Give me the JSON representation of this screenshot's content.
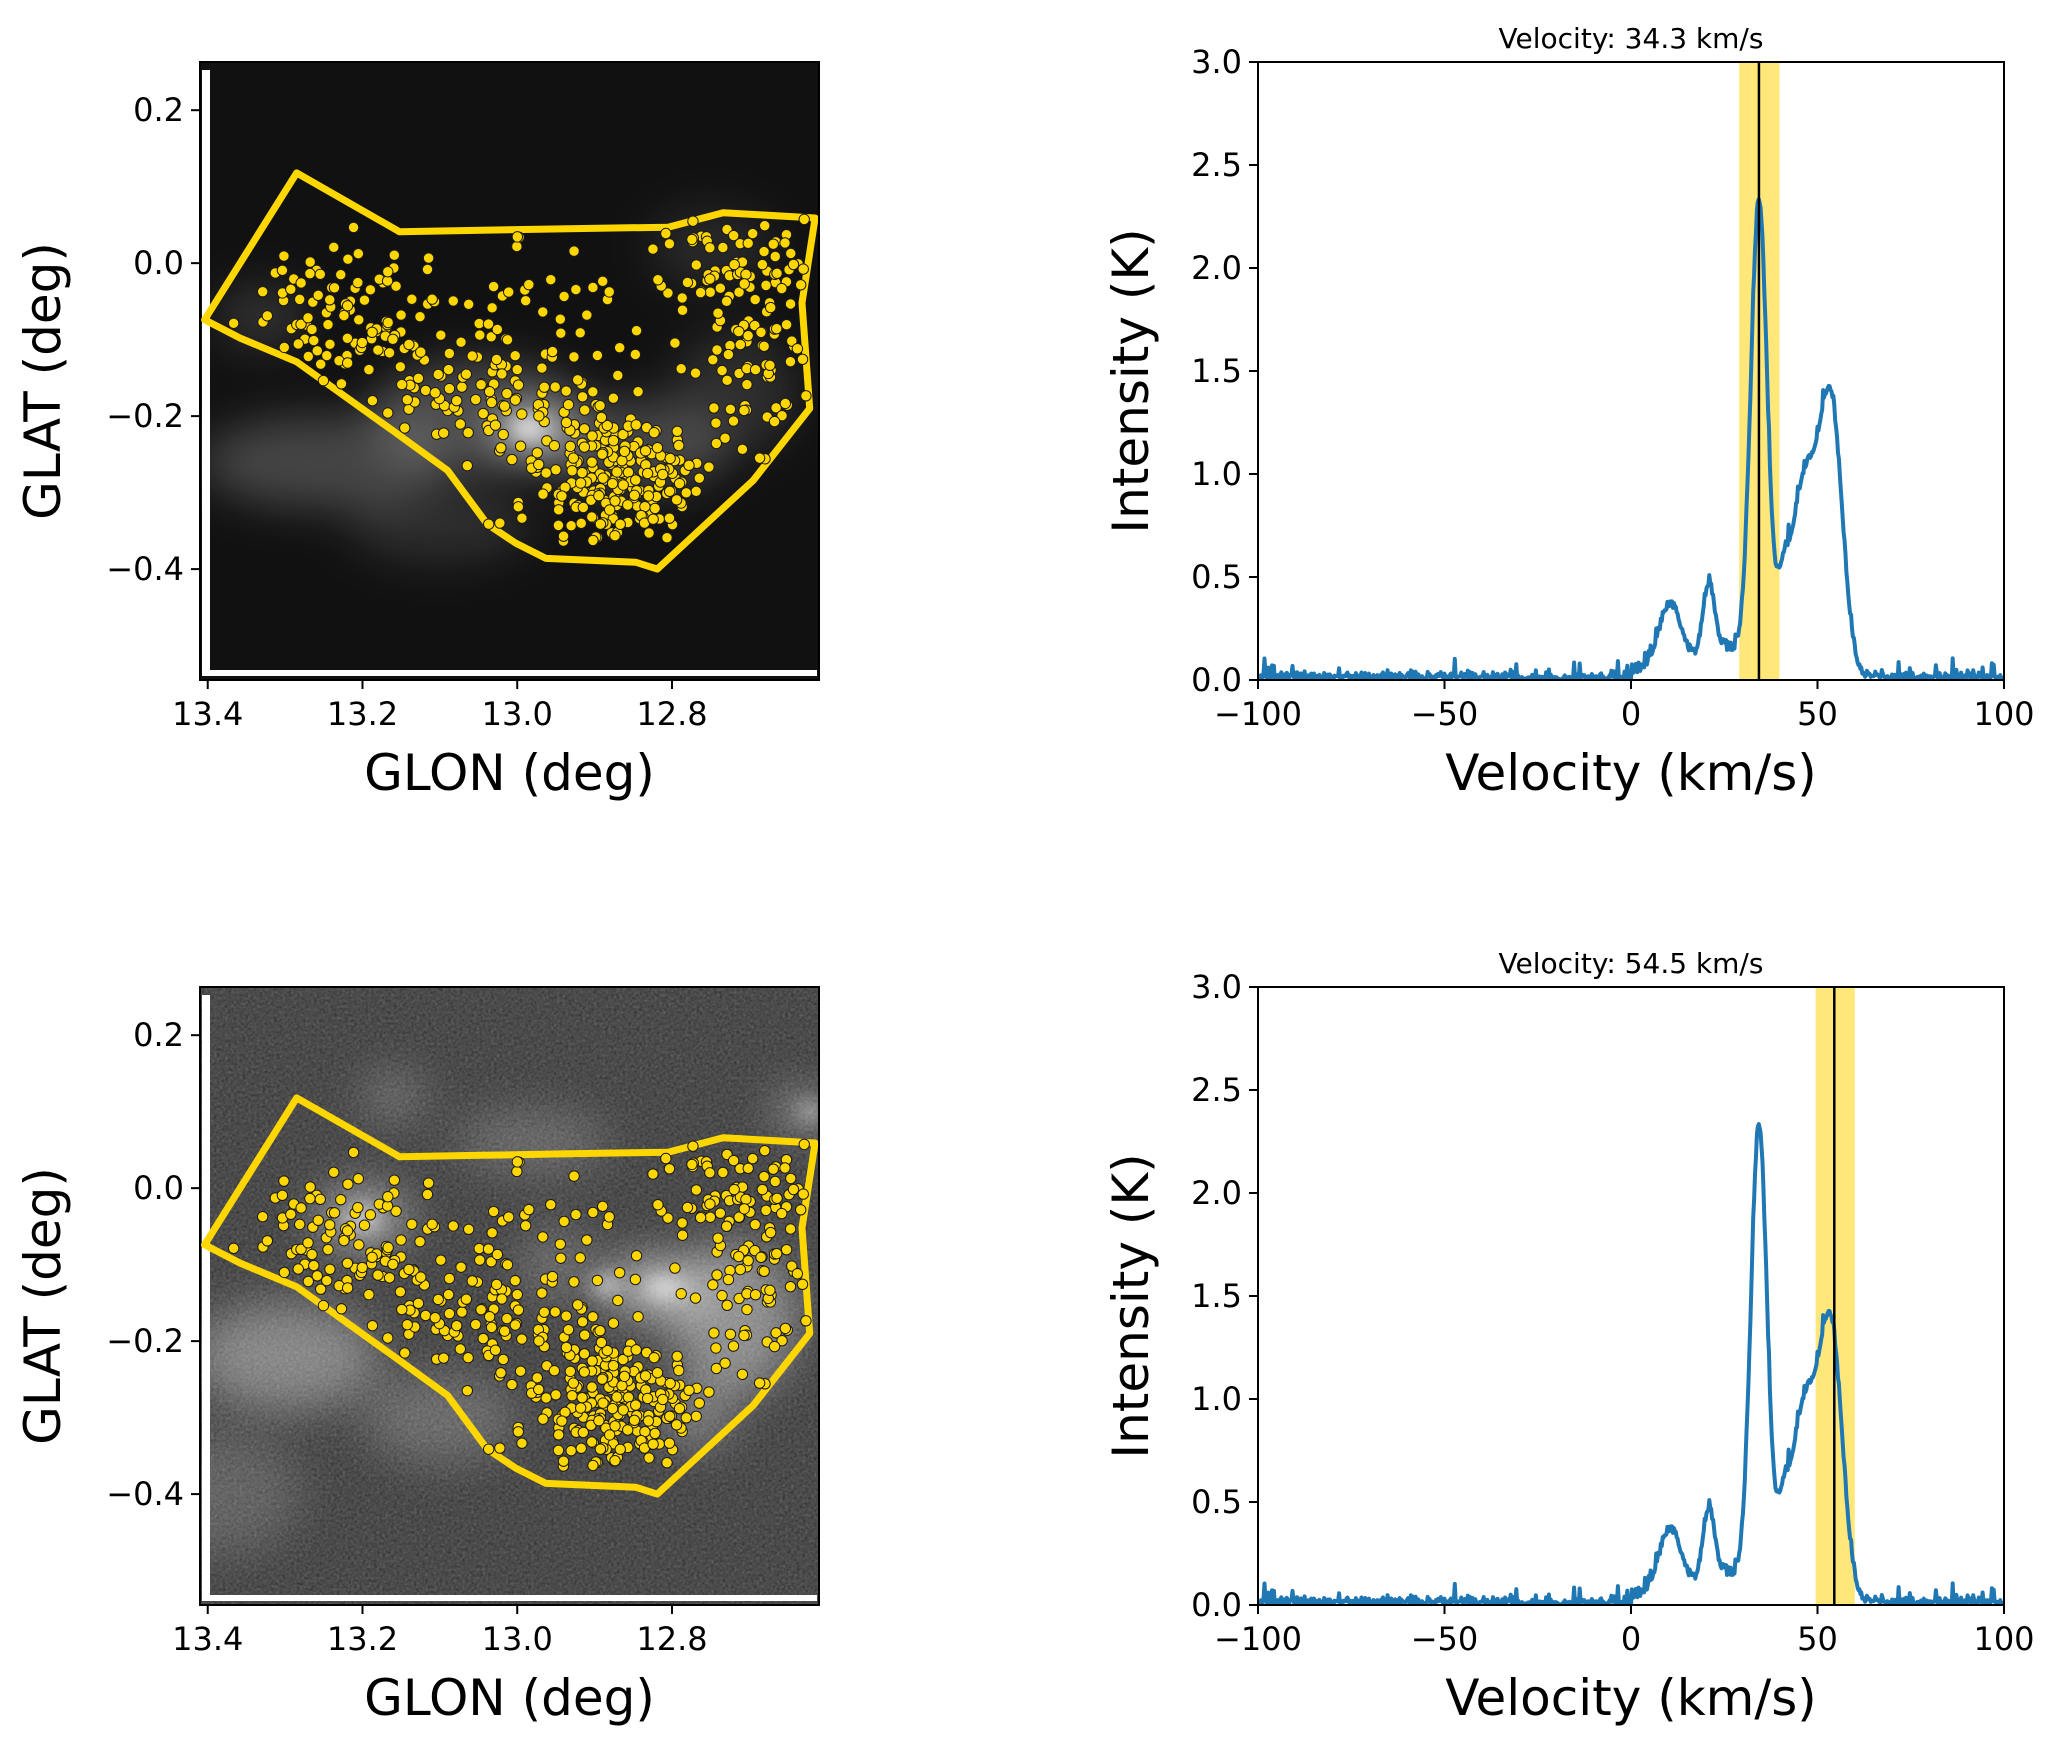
{
  "colors": {
    "polygon": "#FFD700",
    "points_fill": "#FFD700",
    "points_edge": "#1a1a1a",
    "spectrum_line": "#1f77b4",
    "band": "#FFE46B",
    "marker_line": "#000000"
  },
  "chart_data": [
    {
      "type": "heatmap",
      "panel": "top-left",
      "description": "Integrated intensity map in galactic coordinates with region polygon and source markers",
      "xlabel": "GLON (deg)",
      "ylabel": "GLAT (deg)",
      "xlim": [
        13.41,
        12.61
      ],
      "ylim": [
        -0.545,
        0.263
      ],
      "xticks": [
        13.4,
        13.2,
        13.0,
        12.8
      ],
      "xtick_labels": [
        "13.4",
        "13.2",
        "13.0",
        "12.8"
      ],
      "yticks": [
        0.2,
        0.0,
        -0.2,
        -0.4
      ],
      "ytick_labels": [
        "0.2",
        "0.0",
        "−0.2",
        "−0.4"
      ],
      "colormap": "gray",
      "background_style": "dark",
      "polygon_glon_glat": [
        [
          13.404,
          -0.074
        ],
        [
          13.285,
          0.118
        ],
        [
          13.152,
          0.041
        ],
        [
          12.934,
          0.045
        ],
        [
          12.805,
          0.047
        ],
        [
          12.734,
          0.066
        ],
        [
          12.615,
          0.059
        ],
        [
          12.632,
          -0.052
        ],
        [
          12.622,
          -0.19
        ],
        [
          12.695,
          -0.284
        ],
        [
          12.819,
          -0.4
        ],
        [
          12.847,
          -0.391
        ],
        [
          12.963,
          -0.386
        ],
        [
          13.002,
          -0.366
        ],
        [
          13.039,
          -0.341
        ],
        [
          13.09,
          -0.271
        ],
        [
          13.158,
          -0.221
        ],
        [
          13.285,
          -0.129
        ],
        [
          13.358,
          -0.098
        ]
      ],
      "scatter_points_count": 600,
      "scatter_points_note": "generated distribution; individual point coordinates are not transcribed from the screenshot"
    },
    {
      "type": "line",
      "panel": "top-right",
      "title": "Velocity: 34.3 km/s",
      "xlabel": "Velocity (km/s)",
      "ylabel": "Intensity (K)",
      "xlim": [
        -100,
        100
      ],
      "ylim": [
        0,
        3.0
      ],
      "xticks": [
        -100,
        -50,
        0,
        50,
        100
      ],
      "xtick_labels": [
        "−100",
        "−50",
        "0",
        "50",
        "100"
      ],
      "yticks": [
        0.0,
        0.5,
        1.0,
        1.5,
        2.0,
        2.5,
        3.0
      ],
      "ytick_labels": [
        "0.0",
        "0.5",
        "1.0",
        "1.5",
        "2.0",
        "2.5",
        "3.0"
      ],
      "marker_velocity": 34.3,
      "band": [
        29.0,
        39.8
      ],
      "spectrum": {
        "note": "estimated Gaussian components; rendered curve is a model, not raw data",
        "components": [
          {
            "center": 10.5,
            "amplitude": 0.3,
            "sigma": 3.0
          },
          {
            "center": 20.8,
            "amplitude": 0.36,
            "sigma": 1.6
          },
          {
            "center": 34.3,
            "amplitude": 2.28,
            "sigma": 2.2
          },
          {
            "center": 46.5,
            "amplitude": 0.95,
            "sigma": 4.0
          },
          {
            "center": 53.8,
            "amplitude": 1.2,
            "sigma": 3.0
          },
          {
            "center": 26.0,
            "amplitude": 0.1,
            "sigma": 4.0
          },
          {
            "center": 40.5,
            "amplitude": 0.22,
            "sigma": 1.5
          }
        ],
        "peak_intensity": 2.4,
        "noise_rms": 0.02
      }
    },
    {
      "type": "heatmap",
      "panel": "bottom-left",
      "description": "Channel map at 54.5 km/s with region polygon and source markers",
      "xlabel": "GLON (deg)",
      "ylabel": "GLAT (deg)",
      "xlim": [
        13.41,
        12.61
      ],
      "ylim": [
        -0.545,
        0.263
      ],
      "xticks": [
        13.4,
        13.2,
        13.0,
        12.8
      ],
      "xtick_labels": [
        "13.4",
        "13.2",
        "13.0",
        "12.8"
      ],
      "yticks": [
        0.2,
        0.0,
        -0.2,
        -0.4
      ],
      "ytick_labels": [
        "0.2",
        "0.0",
        "−0.2",
        "−0.4"
      ],
      "colormap": "gray",
      "background_style": "noisy"
    },
    {
      "type": "line",
      "panel": "bottom-right",
      "title": "Velocity: 54.5 km/s",
      "xlabel": "Velocity (km/s)",
      "ylabel": "Intensity (K)",
      "xlim": [
        -100,
        100
      ],
      "ylim": [
        0,
        3.0
      ],
      "xticks": [
        -100,
        -50,
        0,
        50,
        100
      ],
      "xtick_labels": [
        "−100",
        "−50",
        "0",
        "50",
        "100"
      ],
      "yticks": [
        0.0,
        0.5,
        1.0,
        1.5,
        2.0,
        2.5,
        3.0
      ],
      "ytick_labels": [
        "0.0",
        "0.5",
        "1.0",
        "1.5",
        "2.0",
        "2.5",
        "3.0"
      ],
      "marker_velocity": 54.5,
      "band": [
        49.5,
        60.0
      ]
    }
  ]
}
